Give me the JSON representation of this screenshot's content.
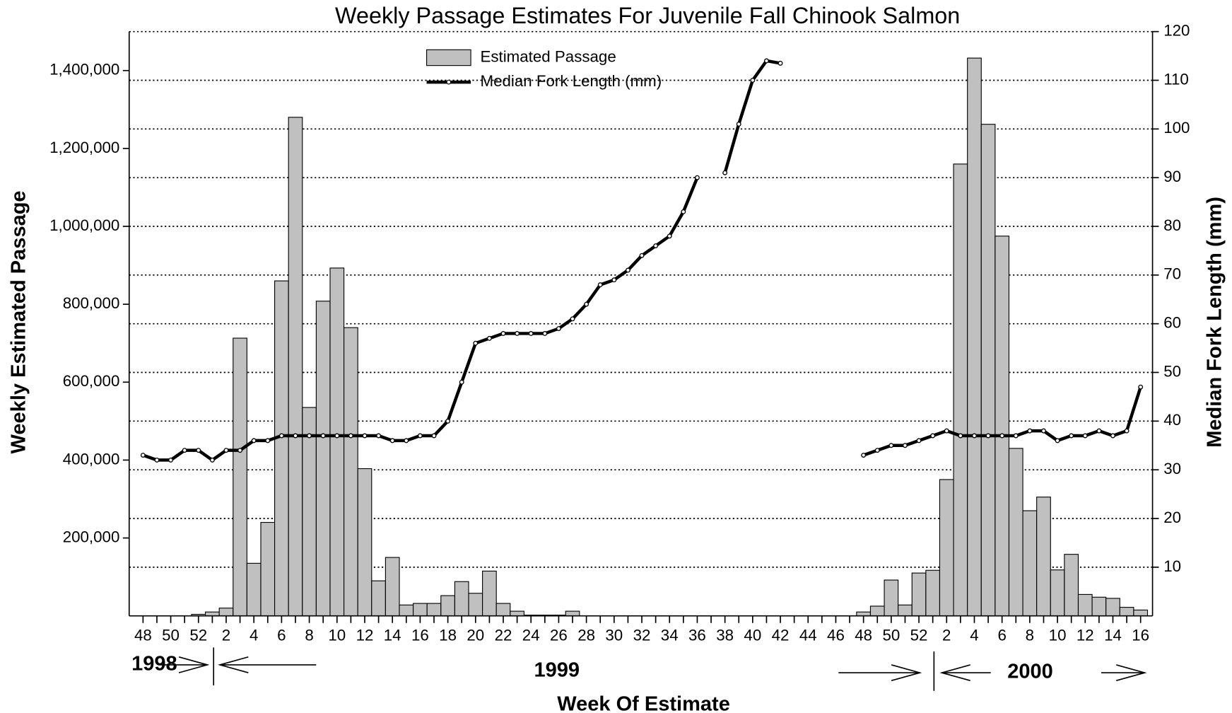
{
  "chart_data": {
    "type": "bar",
    "title": "Weekly Passage Estimates For Juvenile Fall Chinook Salmon",
    "x_label": "Week Of Estimate",
    "y_label": "Weekly Estimated Passage",
    "y2_label": "Median Fork Length (mm)",
    "annotations": [
      "1998",
      "1999",
      "2000"
    ],
    "categories": [
      "48",
      null,
      "50",
      null,
      "52",
      null,
      "2",
      null,
      "4",
      null,
      "6",
      null,
      "8",
      null,
      "10",
      null,
      "12",
      null,
      "14",
      null,
      "16",
      null,
      "18",
      null,
      "20",
      null,
      "22",
      null,
      "24",
      null,
      "26",
      null,
      "28",
      null,
      "30",
      null,
      "32",
      null,
      "34",
      null,
      "36",
      null,
      "38",
      null,
      "40",
      null,
      "42",
      null,
      "44",
      null,
      "46",
      null,
      "48",
      null,
      "50",
      null,
      "52",
      null,
      "2",
      null,
      "4",
      null,
      "6",
      null,
      "8",
      null,
      "10",
      null,
      "12",
      null,
      "14",
      null,
      "16"
    ],
    "series": [
      {
        "name": "Estimated Passage",
        "type": "bar",
        "axis": "y",
        "color": "#c0c0c0",
        "values": [
          0,
          0,
          0,
          0,
          4000,
          10000,
          20000,
          713000,
          135000,
          240000,
          860000,
          1280000,
          535000,
          808000,
          893000,
          740000,
          378000,
          90000,
          150000,
          28000,
          32000,
          32000,
          52000,
          88000,
          58000,
          115000,
          32000,
          12000,
          2000,
          2000,
          2000,
          12000,
          0,
          0,
          0,
          0,
          0,
          0,
          0,
          0,
          0,
          0,
          0,
          0,
          0,
          0,
          0,
          0,
          0,
          0,
          0,
          0,
          10000,
          25000,
          92000,
          28000,
          110000,
          117000,
          350000,
          1160000,
          1432000,
          1262000,
          975000,
          430000,
          270000,
          305000,
          118000,
          158000,
          55000,
          48000,
          45000,
          22000,
          15000
        ]
      },
      {
        "name": "Median Fork Length (mm)",
        "type": "line",
        "axis": "y2",
        "color": "#000000",
        "values": [
          33,
          32,
          32,
          34,
          34,
          32,
          34,
          34,
          36,
          36,
          37,
          37,
          37,
          37,
          37,
          37,
          37,
          37,
          36,
          36,
          37,
          37,
          40,
          48,
          56,
          57,
          58,
          58,
          58,
          58,
          59,
          61,
          64,
          68,
          69,
          71,
          74,
          76,
          78,
          83,
          90,
          null,
          91,
          101,
          110,
          114,
          113.5,
          null,
          null,
          null,
          null,
          null,
          33,
          34,
          35,
          35,
          36,
          37,
          38,
          37,
          37,
          37,
          37,
          37,
          38,
          38,
          36,
          37,
          37,
          38,
          37,
          38,
          47
        ]
      }
    ],
    "ylim": [
      0,
      1500000
    ],
    "yticks": [
      {
        "value": 200000,
        "label": "200,000"
      },
      {
        "value": 400000,
        "label": "400,000"
      },
      {
        "value": 600000,
        "label": "600,000"
      },
      {
        "value": 800000,
        "label": "800,000"
      },
      {
        "value": 1000000,
        "label": "1,000,000"
      },
      {
        "value": 1200000,
        "label": "1,200,000"
      },
      {
        "value": 1400000,
        "label": "1,400,000"
      }
    ],
    "y2lim": [
      0,
      120
    ],
    "y2ticks": [
      10,
      20,
      30,
      40,
      50,
      60,
      70,
      80,
      90,
      100,
      110,
      120
    ],
    "grid": true
  }
}
